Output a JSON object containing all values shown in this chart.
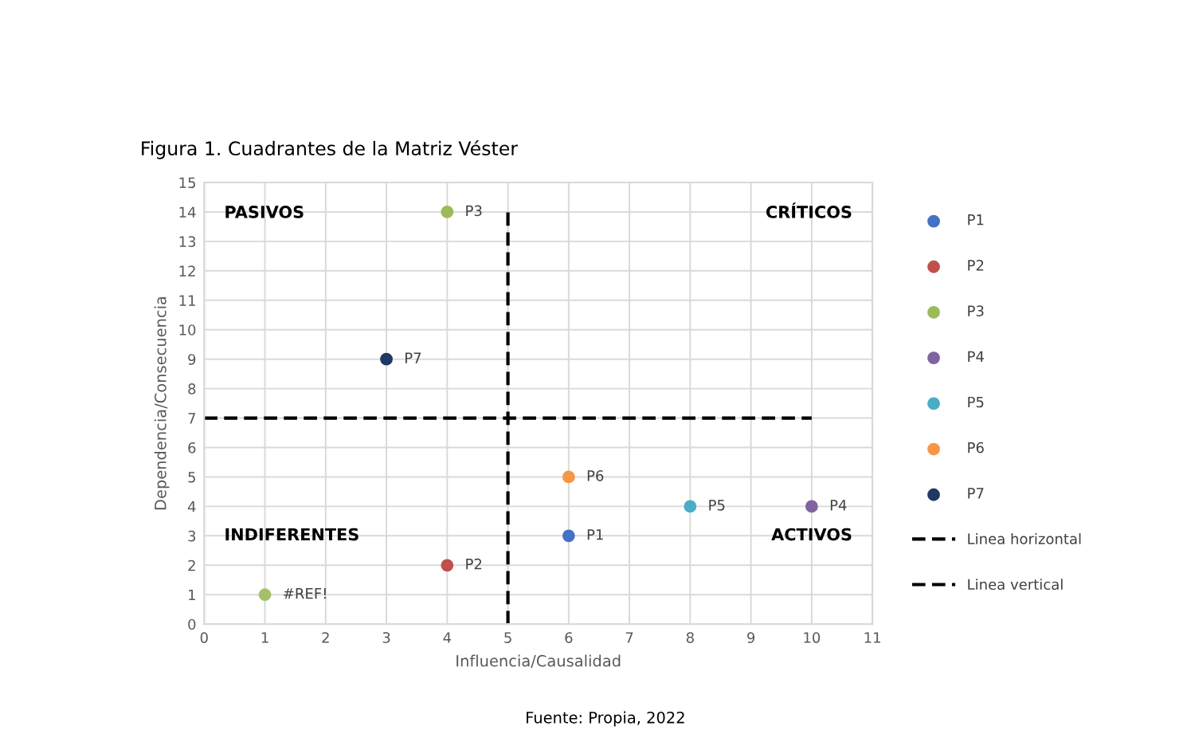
{
  "chart_data": {
    "type": "scatter",
    "title": "Figura 1. Cuadrantes de la Matriz Véster",
    "xlabel": "Influencia/Causalidad",
    "ylabel": "Dependencia/Consecuencia",
    "xlim": [
      0,
      11
    ],
    "xticks": [
      0,
      1,
      2,
      3,
      4,
      5,
      6,
      7,
      8,
      9,
      10,
      11
    ],
    "ylim": [
      0,
      15
    ],
    "yticks": [
      0,
      1,
      2,
      3,
      4,
      5,
      6,
      7,
      8,
      9,
      10,
      11,
      12,
      13,
      14,
      15
    ],
    "grid": true,
    "legend": "right",
    "marker": "circle",
    "annotations": [
      "PASIVOS",
      "CRÍTICOS",
      "INDIFERENTES",
      "ACTIVOS",
      "Fuente: Propia, 2022"
    ],
    "series": [
      {
        "name": "P1",
        "color": "#4472c4",
        "x": [
          6
        ],
        "values": [
          3
        ],
        "value_labels": [
          "P1"
        ]
      },
      {
        "name": "P2",
        "color": "#c0504d",
        "x": [
          4
        ],
        "values": [
          2
        ],
        "value_labels": [
          "P2"
        ]
      },
      {
        "name": "P3",
        "color": "#9bbb59",
        "x": [
          4
        ],
        "values": [
          14
        ],
        "value_labels": [
          "P3"
        ]
      },
      {
        "name": "P4",
        "color": "#8064a2",
        "x": [
          10
        ],
        "values": [
          4
        ],
        "value_labels": [
          "P4"
        ]
      },
      {
        "name": "P5",
        "color": "#4bacc6",
        "x": [
          8
        ],
        "values": [
          4
        ],
        "value_labels": [
          "P5"
        ]
      },
      {
        "name": "P6",
        "color": "#f79646",
        "x": [
          6
        ],
        "values": [
          5
        ],
        "value_labels": [
          "P6"
        ]
      },
      {
        "name": "P7",
        "color": "#1f3864",
        "x": [
          3
        ],
        "values": [
          9
        ],
        "value_labels": [
          "P7"
        ]
      },
      {
        "color": "#a5c06a",
        "x": [
          1
        ],
        "values": [
          1
        ],
        "value_labels": [
          "#REF!"
        ]
      },
      {
        "name": "Linea horizontal",
        "type": "line",
        "line_style": "dashed",
        "marker": "none",
        "color": "#000000",
        "x": [
          0,
          10
        ],
        "values": [
          7,
          7
        ]
      },
      {
        "name": "Linea vertical",
        "type": "line",
        "line_style": "dashed",
        "marker": "none",
        "color": "#000000",
        "x": [
          5,
          5
        ],
        "values": [
          0,
          14
        ]
      }
    ]
  }
}
